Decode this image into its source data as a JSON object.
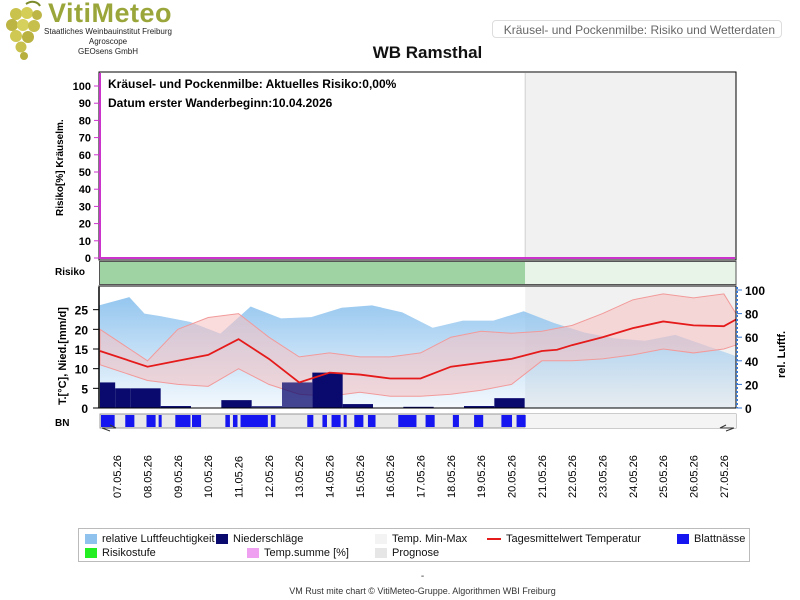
{
  "logo": {
    "name": "VitiMeteo",
    "line1": "Staatliches Weinbauinstitut Freiburg",
    "line2": "Agroscope",
    "line3": "GEOsens GmbH"
  },
  "header_label": "Kräusel- und Pockenmilbe: Risiko und Wetterdaten",
  "page_title": "WB Ramsthal",
  "info": {
    "risk_text": "Kräusel- und Pockenmilbe: Aktuelles Risiko:0,00%",
    "date_text": "Datum erster Wanderbeginn:10.04.2026"
  },
  "panel_labels": {
    "risk_axis": "Risiko[%] Kräuselm.",
    "risk_band": "Risiko",
    "weather_axis_left": "T.[°C], Nied.[mm/d]",
    "weather_axis_right": "rel. Luftf.",
    "leaf_wetness": "BN"
  },
  "colors": {
    "humidity": "#8fc3ee",
    "precip": "#0a0a6e",
    "temp_line": "#e51a1a",
    "temp_band": "#f8c0c0",
    "leaf_wetness": "#1616f0",
    "risk_level": "#9fd3a3",
    "temp_sum": "#f0a0f0",
    "forecast": "#e6e6e6",
    "risk_axis": "#cc33cc",
    "right_axis": "#3a77d0"
  },
  "chart_data": {
    "type": "line",
    "x_labels": [
      "07.05.26",
      "08.05.26",
      "09.05.26",
      "10.05.26",
      "11.05.26",
      "12.05.26",
      "13.05.26",
      "14.05.26",
      "15.05.26",
      "16.05.26",
      "17.05.26",
      "18.05.26",
      "19.05.26",
      "20.05.26",
      "21.05.26",
      "22.05.26",
      "23.05.26",
      "24.05.26",
      "25.05.26",
      "26.05.26",
      "27.05.26"
    ],
    "forecast_start": "21.05.26",
    "risk": {
      "ylabel": "Risiko[%] Kräuselm.",
      "ylim": [
        0,
        100
      ],
      "ticks": [
        0,
        10,
        20,
        30,
        40,
        50,
        60,
        70,
        80,
        90,
        100
      ],
      "values": [
        0,
        0,
        0,
        0,
        0,
        0,
        0,
        0,
        0,
        0,
        0,
        0,
        0,
        0,
        0,
        0,
        0,
        0,
        0,
        0,
        0
      ]
    },
    "weather": {
      "ylim_left": [
        0,
        30
      ],
      "ticks_left": [
        0,
        5,
        10,
        15,
        20,
        25
      ],
      "ylim_right": [
        0,
        100
      ],
      "ticks_right": [
        0,
        20,
        40,
        60,
        80,
        100
      ],
      "humidity": {
        "name": "relative Luftfeuchtigkeit",
        "x": [
          0,
          1,
          1.5,
          2,
          3,
          4,
          5,
          6,
          7,
          8,
          9,
          10,
          11,
          12,
          13,
          14,
          15,
          16,
          17,
          18,
          19,
          20,
          21,
          22
        ],
        "values": [
          87,
          94,
          80,
          78,
          73,
          63,
          86,
          76,
          77,
          85,
          87,
          81,
          68,
          74,
          74,
          82,
          72,
          64,
          59,
          57,
          62,
          53,
          44,
          38
        ]
      },
      "temp_mean": {
        "name": "Tagesmittelwert Temperatur",
        "x": [
          0,
          1,
          2,
          3,
          4,
          5,
          6,
          7,
          8,
          9,
          10,
          11,
          12,
          13,
          14,
          14.5,
          15,
          16,
          17,
          18,
          19,
          20,
          21
        ],
        "values": [
          14.5,
          10.5,
          12,
          13.5,
          17.5,
          12.5,
          6.5,
          9,
          8.5,
          7.5,
          7.5,
          10.5,
          11.5,
          12.5,
          14.5,
          14.8,
          16,
          18,
          20.3,
          22,
          21,
          20.8,
          22.5
        ]
      },
      "temp_max": {
        "x": [
          0,
          1,
          2,
          3,
          4,
          5,
          6,
          7,
          8,
          9,
          10,
          11,
          12,
          13,
          14,
          15,
          16,
          17,
          18,
          19,
          20,
          21
        ],
        "values": [
          20,
          12,
          20,
          23,
          24,
          18,
          13,
          14,
          13,
          13,
          14,
          18,
          19.5,
          19,
          19.5,
          21,
          24,
          27.5,
          29,
          28,
          29,
          24
        ]
      },
      "temp_min": {
        "x": [
          0,
          1,
          2,
          3,
          4,
          5,
          6,
          7,
          8,
          9,
          10,
          11,
          12,
          13,
          14,
          15,
          16,
          17,
          18,
          19,
          20,
          21
        ],
        "values": [
          11,
          7,
          6,
          5.5,
          10,
          6,
          3.5,
          3,
          4,
          3,
          3,
          3.5,
          4.5,
          6,
          12,
          12,
          12.5,
          13.5,
          15,
          14,
          15,
          16
        ]
      },
      "precip": {
        "name": "Niederschläge",
        "x": [
          0,
          0.5,
          1,
          2,
          3,
          4,
          5,
          6,
          7,
          8,
          9,
          10,
          11,
          12,
          13,
          14
        ],
        "values": [
          6.5,
          5,
          5,
          0.5,
          0,
          2,
          0.5,
          6.5,
          9,
          1,
          0,
          0.3,
          0,
          0.5,
          2.5,
          0
        ]
      }
    },
    "leaf_wetness": {
      "name": "Blattnässe",
      "x_start": [
        0,
        0.8,
        1.5,
        1.9,
        2.45,
        3,
        4.1,
        4.35,
        4.6,
        5.6,
        6.8,
        7.3,
        7.6,
        8,
        8.35,
        8.8,
        9.8,
        10.7,
        11.6,
        12.3,
        13.2,
        13.7
      ],
      "x_end": [
        0.45,
        1.1,
        1.8,
        2.0,
        2.95,
        3.3,
        4.25,
        4.5,
        5.5,
        5.75,
        7.0,
        7.45,
        7.9,
        8.1,
        8.65,
        9.05,
        10.4,
        11.0,
        11.8,
        12.6,
        13.55,
        14.0
      ]
    },
    "legend": [
      {
        "label": "relative Luftfeuchtigkeit",
        "key": "humidity"
      },
      {
        "label": "Niederschläge",
        "key": "precip"
      },
      {
        "label": "Temp. Min-Max",
        "key": "temp_band"
      },
      {
        "label": "Tagesmittelwert Temperatur",
        "key": "temp_line"
      },
      {
        "label": "Blattnässe",
        "key": "leaf_wetness"
      },
      {
        "label": "Risikostufe",
        "key": "risk_level"
      },
      {
        "label": "Temp.summe [%]",
        "key": "temp_sum"
      },
      {
        "label": "Prognose",
        "key": "forecast"
      }
    ]
  },
  "footer": {
    "dash": "-",
    "credit": "VM Rust mite chart © VitiMeteo-Gruppe. Algorithmen WBI Freiburg"
  }
}
